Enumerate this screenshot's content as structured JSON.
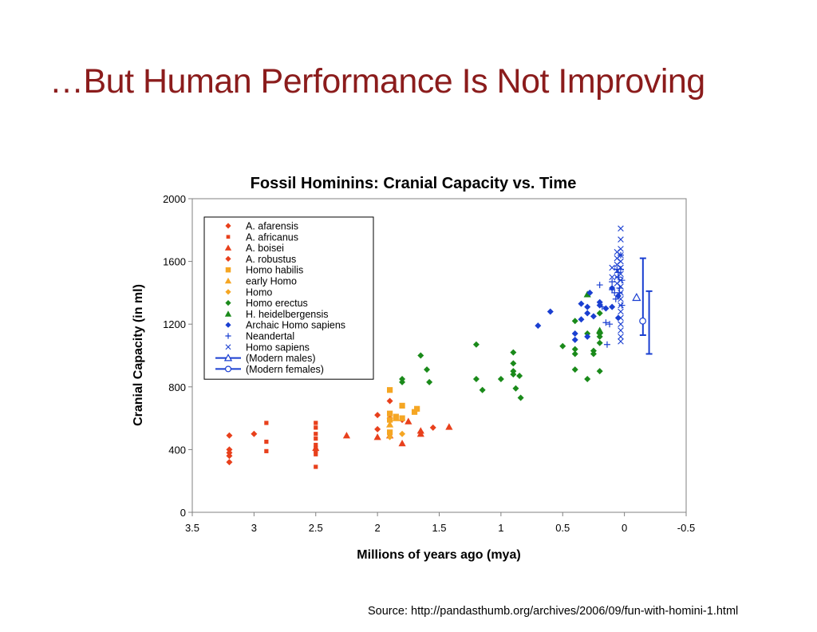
{
  "slide": {
    "title": "…But Human Performance Is Not Improving",
    "source": "Source: http://pandasthumb.org/archives/2006/09/fun-with-homini-1.html"
  },
  "chart_data": {
    "type": "scatter",
    "title": "Fossil Hominins: Cranial Capacity vs. Time",
    "xlabel": "Millions of years ago (mya)",
    "ylabel": "Cranial Capacity (in ml)",
    "xlim": [
      3.5,
      -0.5
    ],
    "ylim": [
      0,
      2000
    ],
    "x_ticks": [
      "3.5",
      "3",
      "2.5",
      "2",
      "1.5",
      "1",
      "0.5",
      "0",
      "-0.5"
    ],
    "y_ticks": [
      "0",
      "400",
      "800",
      "1200",
      "1600",
      "2000"
    ],
    "legend_position": "top-left",
    "grid": false,
    "series": [
      {
        "name": "A. afarensis",
        "marker": "diamond",
        "color": "#e8401c",
        "points": [
          [
            3.2,
            490
          ],
          [
            3.2,
            400
          ],
          [
            3.2,
            380
          ],
          [
            3.2,
            360
          ],
          [
            3.2,
            320
          ],
          [
            3.0,
            500
          ],
          [
            1.9,
            710
          ]
        ]
      },
      {
        "name": "A. africanus",
        "marker": "square-small",
        "color": "#e8401c",
        "points": [
          [
            2.9,
            570
          ],
          [
            2.9,
            450
          ],
          [
            2.9,
            390
          ],
          [
            2.5,
            570
          ],
          [
            2.5,
            540
          ],
          [
            2.5,
            500
          ],
          [
            2.5,
            470
          ],
          [
            2.5,
            430
          ],
          [
            2.5,
            410
          ],
          [
            2.5,
            390
          ],
          [
            2.5,
            370
          ],
          [
            2.5,
            290
          ]
        ]
      },
      {
        "name": "A. boisei",
        "marker": "triangle",
        "color": "#e8401c",
        "points": [
          [
            2.5,
            410
          ],
          [
            2.25,
            490
          ],
          [
            2.0,
            480
          ],
          [
            1.9,
            490
          ],
          [
            1.8,
            440
          ],
          [
            1.75,
            580
          ],
          [
            1.65,
            500
          ],
          [
            1.65,
            520
          ],
          [
            1.42,
            545
          ]
        ]
      },
      {
        "name": "A. robustus",
        "marker": "diamond",
        "color": "#e8401c",
        "points": [
          [
            2.0,
            620
          ],
          [
            2.0,
            530
          ],
          [
            1.9,
            600
          ],
          [
            1.8,
            590
          ],
          [
            1.65,
            510
          ],
          [
            1.55,
            540
          ]
        ]
      },
      {
        "name": "Homo habilis",
        "marker": "square",
        "color": "#f5a623",
        "points": [
          [
            1.9,
            780
          ],
          [
            1.9,
            630
          ],
          [
            1.9,
            590
          ],
          [
            1.9,
            510
          ],
          [
            1.85,
            610
          ],
          [
            1.8,
            680
          ],
          [
            1.8,
            600
          ],
          [
            1.7,
            640
          ],
          [
            1.68,
            660
          ]
        ]
      },
      {
        "name": "early Homo",
        "marker": "triangle",
        "color": "#f5a623",
        "points": [
          [
            1.9,
            560
          ],
          [
            1.85,
            600
          ]
        ]
      },
      {
        "name": "Homo",
        "marker": "diamond",
        "color": "#f5a623",
        "points": [
          [
            1.9,
            480
          ],
          [
            1.8,
            500
          ]
        ]
      },
      {
        "name": "Homo erectus",
        "marker": "diamond",
        "color": "#1a8a1a",
        "points": [
          [
            1.8,
            850
          ],
          [
            1.8,
            830
          ],
          [
            1.65,
            1000
          ],
          [
            1.6,
            910
          ],
          [
            1.58,
            830
          ],
          [
            1.2,
            1070
          ],
          [
            1.2,
            850
          ],
          [
            1.15,
            780
          ],
          [
            1.0,
            850
          ],
          [
            0.9,
            1020
          ],
          [
            0.9,
            950
          ],
          [
            0.9,
            900
          ],
          [
            0.9,
            880
          ],
          [
            0.88,
            790
          ],
          [
            0.85,
            870
          ],
          [
            0.84,
            730
          ],
          [
            0.5,
            1060
          ],
          [
            0.4,
            1220
          ],
          [
            0.4,
            1040
          ],
          [
            0.4,
            1010
          ],
          [
            0.4,
            910
          ],
          [
            0.3,
            1140
          ],
          [
            0.3,
            850
          ],
          [
            0.25,
            1030
          ],
          [
            0.25,
            1010
          ],
          [
            0.2,
            1270
          ],
          [
            0.2,
            1140
          ],
          [
            0.2,
            1120
          ],
          [
            0.2,
            1080
          ],
          [
            0.2,
            900
          ]
        ]
      },
      {
        "name": "H. heidelbergensis",
        "marker": "triangle",
        "color": "#1a8a1a",
        "points": [
          [
            0.3,
            1390
          ],
          [
            0.2,
            1160
          ]
        ]
      },
      {
        "name": "Archaic Homo sapiens",
        "marker": "diamond",
        "color": "#1a3fd1",
        "points": [
          [
            0.7,
            1190
          ],
          [
            0.6,
            1280
          ],
          [
            0.4,
            1140
          ],
          [
            0.4,
            1100
          ],
          [
            0.35,
            1330
          ],
          [
            0.35,
            1230
          ],
          [
            0.3,
            1310
          ],
          [
            0.3,
            1270
          ],
          [
            0.3,
            1120
          ],
          [
            0.28,
            1400
          ],
          [
            0.25,
            1250
          ],
          [
            0.2,
            1340
          ],
          [
            0.2,
            1320
          ],
          [
            0.15,
            1300
          ],
          [
            0.1,
            1430
          ],
          [
            0.1,
            1310
          ],
          [
            0.05,
            1380
          ],
          [
            0.05,
            1240
          ]
        ]
      },
      {
        "name": "Neandertal",
        "marker": "plus",
        "color": "#1a3fd1",
        "points": [
          [
            0.2,
            1450
          ],
          [
            0.18,
            1310
          ],
          [
            0.15,
            1210
          ],
          [
            0.14,
            1070
          ],
          [
            0.12,
            1200
          ],
          [
            0.1,
            1470
          ],
          [
            0.1,
            1420
          ],
          [
            0.08,
            1400
          ],
          [
            0.07,
            1360
          ],
          [
            0.06,
            1550
          ],
          [
            0.05,
            1530
          ],
          [
            0.05,
            1500
          ],
          [
            0.04,
            1430
          ],
          [
            0.04,
            1400
          ],
          [
            0.03,
            1640
          ],
          [
            0.03,
            1550
          ],
          [
            0.02,
            1480
          ],
          [
            0.02,
            1320
          ]
        ]
      },
      {
        "name": "Homo sapiens",
        "marker": "x",
        "color": "#1a3fd1",
        "points": [
          [
            0.03,
            1810
          ],
          [
            0.03,
            1740
          ],
          [
            0.03,
            1680
          ],
          [
            0.03,
            1640
          ],
          [
            0.03,
            1600
          ],
          [
            0.03,
            1560
          ],
          [
            0.03,
            1520
          ],
          [
            0.03,
            1480
          ],
          [
            0.03,
            1440
          ],
          [
            0.03,
            1400
          ],
          [
            0.03,
            1360
          ],
          [
            0.03,
            1320
          ],
          [
            0.03,
            1280
          ],
          [
            0.03,
            1240
          ],
          [
            0.03,
            1200
          ],
          [
            0.03,
            1160
          ],
          [
            0.03,
            1120
          ],
          [
            0.03,
            1090
          ],
          [
            0.06,
            1660
          ],
          [
            0.06,
            1620
          ],
          [
            0.06,
            1580
          ],
          [
            0.06,
            1540
          ],
          [
            0.06,
            1500
          ],
          [
            0.06,
            1460
          ],
          [
            0.1,
            1560
          ],
          [
            0.1,
            1500
          ]
        ]
      }
    ],
    "error_bars": [
      {
        "name": "(Modern males)",
        "marker": "triangle-open",
        "color": "#1a3fd1",
        "x": -0.15,
        "mid": 1370,
        "low": 1130,
        "high": 1620
      },
      {
        "name": "(Modern females)",
        "marker": "circle-open",
        "color": "#1a3fd1",
        "x": -0.2,
        "mid": 1220,
        "low": 1010,
        "high": 1410
      }
    ]
  }
}
